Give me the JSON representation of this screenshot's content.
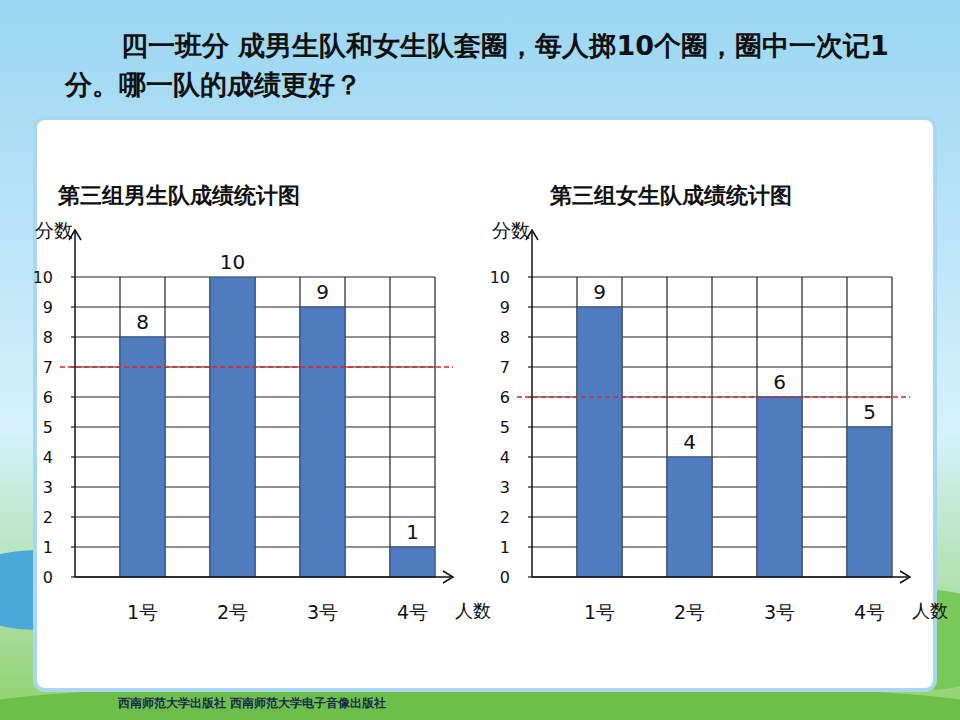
{
  "question": "四一班分 成男生队和女生队套圈，每人掷10个圈，圈中一次记1分。哪一队的成绩更好？",
  "footer": "西南师范大学出版社  西南师范大学电子音像出版社",
  "chart_data": [
    {
      "type": "bar",
      "title": "第三组男生队成绩统计图",
      "y_label": "分数",
      "x_label": "人数",
      "categories": [
        "1号",
        "2号",
        "3号",
        "4号"
      ],
      "values": [
        8,
        10,
        9,
        1
      ],
      "color": "#4f7cbf",
      "ylim": [
        0,
        10
      ],
      "yticks": [
        0,
        1,
        2,
        3,
        4,
        5,
        6,
        7,
        8,
        9,
        10
      ],
      "grid": true,
      "data_labels": true,
      "average": 7
    },
    {
      "type": "bar",
      "title": "第三组女生队成绩统计图",
      "y_label": "分数",
      "x_label": "人数",
      "categories": [
        "1号",
        "2号",
        "3号",
        "4号"
      ],
      "values": [
        9,
        4,
        6,
        5
      ],
      "color": "#4f7cbf",
      "ylim": [
        0,
        10
      ],
      "yticks": [
        0,
        1,
        2,
        3,
        4,
        5,
        6,
        7,
        8,
        9,
        10
      ],
      "grid": true,
      "data_labels": true,
      "average": 6
    }
  ]
}
